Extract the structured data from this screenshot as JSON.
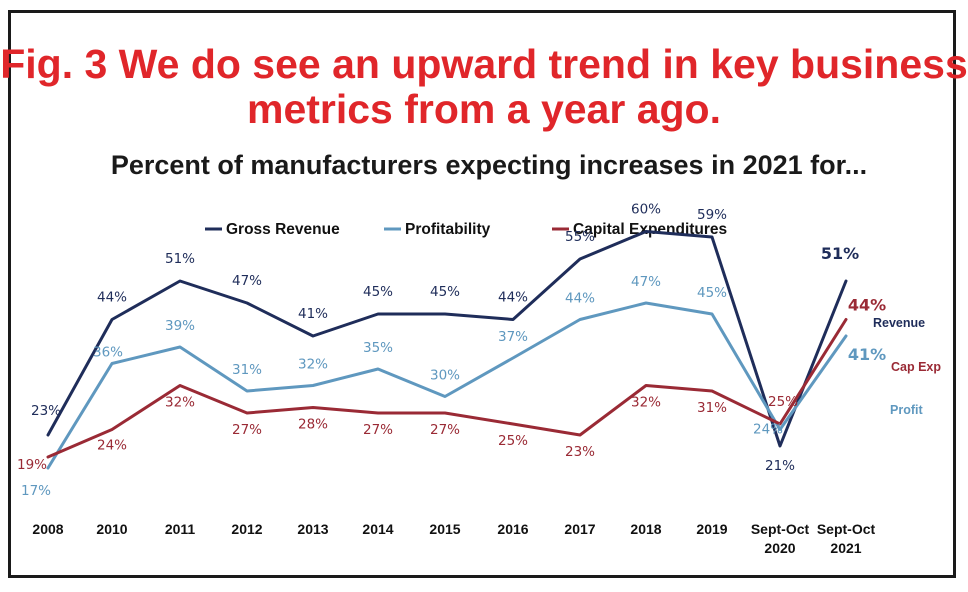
{
  "chart_data": {
    "type": "line",
    "title": "Fig. 3 We do see an upward trend in key business metrics from a year ago.",
    "subtitle": "Percent of manufacturers expecting increases in 2021 for...",
    "categories": [
      "2008",
      "2010",
      "2011",
      "2012",
      "2013",
      "2014",
      "2015",
      "2016",
      "2017",
      "2018",
      "2019",
      "Sept-Oct 2020",
      "Sept-Oct 2021"
    ],
    "series": [
      {
        "name": "Gross Revenue",
        "end_label": "Revenue",
        "color": "#1f2d5a",
        "values": [
          23,
          44,
          51,
          47,
          41,
          45,
          45,
          44,
          55,
          60,
          59,
          21,
          51
        ],
        "labels": [
          "23%",
          "44%",
          "51%",
          "47%",
          "41%",
          "45%",
          "45%",
          "44%",
          "55%",
          "60%",
          "59%",
          "21%",
          "51%"
        ]
      },
      {
        "name": "Profitability",
        "end_label": "Profit",
        "color": "#5f98bf",
        "values": [
          17,
          36,
          39,
          31,
          32,
          35,
          30,
          37,
          44,
          47,
          45,
          24,
          41
        ],
        "labels": [
          "17%",
          "36%",
          "39%",
          "31%",
          "32%",
          "35%",
          "30%",
          "37%",
          "44%",
          "47%",
          "45%",
          "24%",
          "41%"
        ]
      },
      {
        "name": "Capital Expenditures",
        "end_label": "Cap Exp",
        "color": "#9a2a35",
        "values": [
          19,
          24,
          32,
          27,
          28,
          27,
          27,
          25,
          23,
          32,
          31,
          25,
          44
        ],
        "labels": [
          "19%",
          "24%",
          "32%",
          "27%",
          "28%",
          "27%",
          "27%",
          "25%",
          "23%",
          "32%",
          "31%",
          "25%",
          "44%"
        ]
      }
    ],
    "legend": "top-center",
    "grid": false
  }
}
